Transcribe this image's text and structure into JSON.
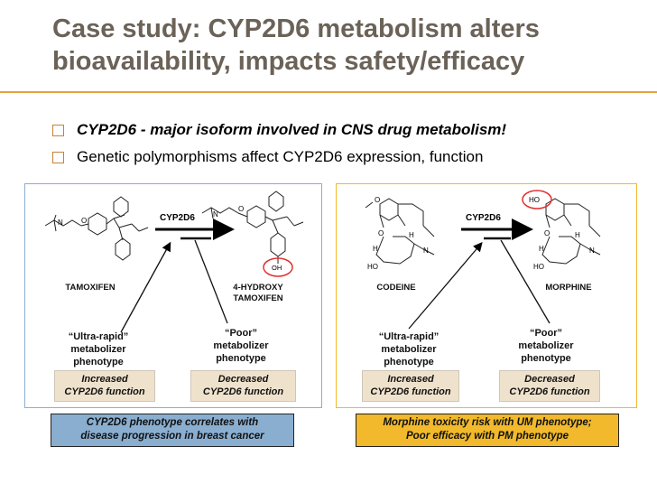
{
  "slide": {
    "title_line1": "Case study: CYP2D6 metabolism alters",
    "title_line2": "bioavailability, impacts safety/efficacy",
    "bullets": [
      "CYP2D6 - major isoform involved in CNS drug metabolism!",
      "Genetic polymorphisms affect CYP2D6 expression, function"
    ],
    "colors": {
      "title": "#6b6258",
      "accent_rule": "#e7a33b",
      "left_panel": "#8aaed0",
      "right_panel": "#f1b92b",
      "func_box": "#efe2cc",
      "highlight_circle": "#e03030"
    }
  },
  "left": {
    "enzyme": "CYP2D6",
    "substrate": "TAMOXIFEN",
    "product_line1": "4-HYDROXY",
    "product_line2": "TAMOXIFEN",
    "atom_N": "N",
    "atom_O": "O",
    "atom_OH": "OH",
    "pheno_left": [
      "“Ultra-rapid”",
      "metabolizer",
      "phenotype"
    ],
    "pheno_right": [
      "“Poor”",
      "metabolizer",
      "phenotype"
    ],
    "func_left": [
      "Increased",
      "CYP2D6 function"
    ],
    "func_right": [
      "Decreased",
      "CYP2D6 function"
    ],
    "summary": [
      "CYP2D6 phenotype correlates with",
      "disease progression in breast cancer"
    ]
  },
  "right": {
    "enzyme": "CYP2D6",
    "substrate": "CODEINE",
    "product": "MORPHINE",
    "atom_O": "O",
    "atom_H": "H",
    "atom_N": "N",
    "atom_HO": "HO",
    "pheno_left": [
      "“Ultra-rapid”",
      "metabolizer",
      "phenotype"
    ],
    "pheno_right": [
      "“Poor”",
      "metabolizer",
      "phenotype"
    ],
    "func_left": [
      "Increased",
      "CYP2D6 function"
    ],
    "func_right": [
      "Decreased",
      "CYP2D6 function"
    ],
    "summary": [
      "Morphine toxicity risk with UM phenotype;",
      "Poor efficacy with PM phenotype"
    ]
  }
}
